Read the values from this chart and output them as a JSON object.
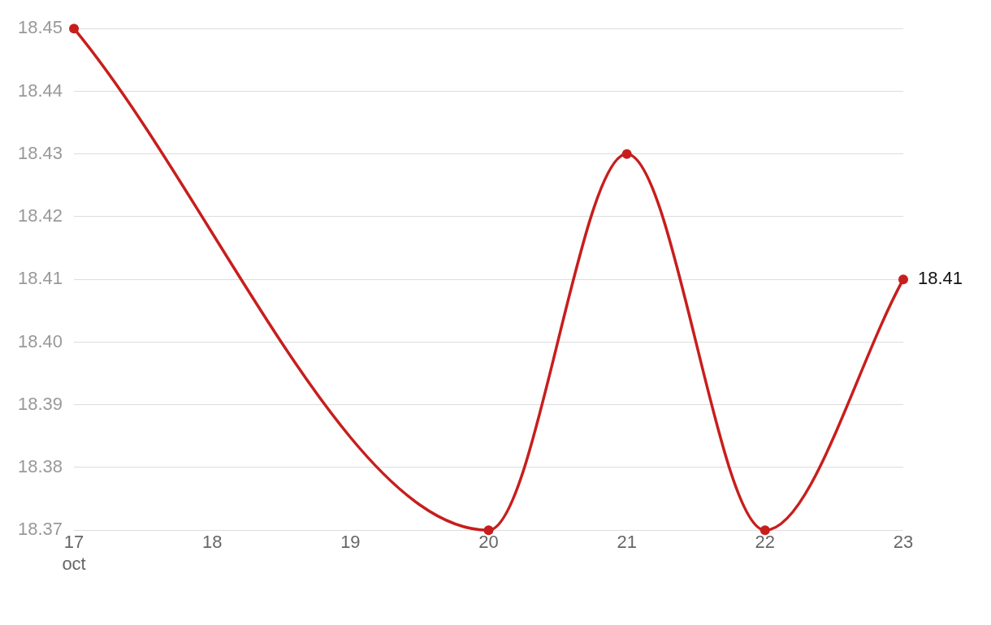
{
  "chart_data": {
    "type": "line",
    "x": [
      "--10-17",
      "--10-20",
      "--10-21",
      "--10-22",
      "--10-23"
    ],
    "series": [
      {
        "color": "#c71e1d",
        "values": [
          18.45,
          18.37,
          18.43,
          18.37,
          18.41
        ],
        "value_labels": [
          null,
          null,
          null,
          null,
          "18.41"
        ]
      }
    ],
    "xlim": [
      "--10-17",
      "--10-23"
    ],
    "xticks": [
      {
        "value": "--10-17",
        "label": "17\noct"
      },
      {
        "value": "--10-18",
        "label": "18"
      },
      {
        "value": "--10-19",
        "label": "19"
      },
      {
        "value": "--10-20",
        "label": "20"
      },
      {
        "value": "--10-21",
        "label": "21"
      },
      {
        "value": "--10-22",
        "label": "22"
      },
      {
        "value": "--10-23",
        "label": "23"
      }
    ],
    "ylim": [
      18.37,
      18.45
    ],
    "yticks": [
      {
        "value": 18.37,
        "label": "18.37"
      },
      {
        "value": 18.38,
        "label": "18.38"
      },
      {
        "value": 18.39,
        "label": "18.39"
      },
      {
        "value": 18.4,
        "label": "18.40"
      },
      {
        "value": 18.41,
        "label": "18.41"
      },
      {
        "value": 18.42,
        "label": "18.42"
      },
      {
        "value": 18.43,
        "label": "18.43"
      },
      {
        "value": 18.44,
        "label": "18.44"
      },
      {
        "value": 18.45,
        "label": "18.45"
      }
    ],
    "grid": "y",
    "legend": false,
    "marker": "circle",
    "line_style": "solid"
  }
}
